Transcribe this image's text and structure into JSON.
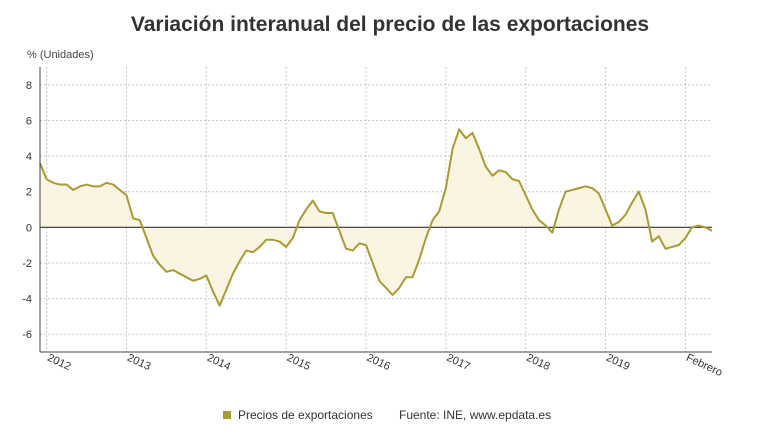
{
  "chart_data": {
    "type": "area",
    "title": "Variación interanual del precio de las exportaciones",
    "ylabel": "% (Unidades)",
    "xlabel": "",
    "x_tick_labels": [
      "2012",
      "2013",
      "2014",
      "2015",
      "2016",
      "2017",
      "2018",
      "2019",
      "Febrero"
    ],
    "y_ticks": [
      8,
      6,
      4,
      2,
      0,
      -2,
      -4,
      -6
    ],
    "ylim": [
      -7,
      9
    ],
    "grid": true,
    "legend_position": "bottom-center",
    "series_color": "#a99a33",
    "fill_color": "#faf4e3",
    "series": [
      {
        "name": "Precios de exportaciones",
        "values": [
          3.6,
          2.7,
          2.5,
          2.4,
          2.4,
          2.1,
          2.3,
          2.4,
          2.3,
          2.3,
          2.5,
          2.4,
          2.1,
          1.8,
          0.5,
          0.4,
          -0.6,
          -1.6,
          -2.1,
          -2.5,
          -2.4,
          -2.6,
          -2.8,
          -3.0,
          -2.9,
          -2.7,
          -3.6,
          -4.4,
          -3.5,
          -2.6,
          -1.9,
          -1.3,
          -1.4,
          -1.1,
          -0.7,
          -0.7,
          -0.8,
          -1.1,
          -0.6,
          0.4,
          1.0,
          1.5,
          0.9,
          0.8,
          0.8,
          -0.2,
          -1.2,
          -1.3,
          -0.9,
          -1.0,
          -2.0,
          -3.0,
          -3.4,
          -3.8,
          -3.4,
          -2.8,
          -2.8,
          -1.8,
          -0.6,
          0.4,
          0.9,
          2.2,
          4.4,
          5.5,
          5.0,
          5.3,
          4.4,
          3.4,
          2.9,
          3.2,
          3.1,
          2.7,
          2.6,
          1.8,
          1.0,
          0.4,
          0.1,
          -0.3,
          1.0,
          2.0,
          2.1,
          2.2,
          2.3,
          2.2,
          1.9,
          1.0,
          0.1,
          0.3,
          0.7,
          1.4,
          2.0,
          1.0,
          -0.8,
          -0.5,
          -1.2,
          -1.1,
          -1.0,
          -0.6,
          0.0,
          0.1,
          0.0,
          -0.2
        ]
      }
    ],
    "source": "Fuente: INE, www.epdata.es"
  }
}
